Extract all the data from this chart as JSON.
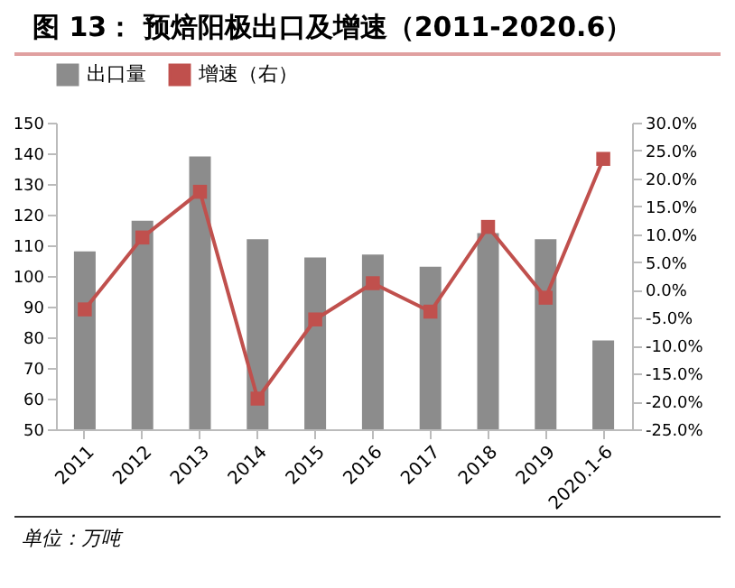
{
  "chart_data": {
    "type": "bar",
    "title": "图 13： 预焙阳极出口及增速（2011-2020.6）",
    "categories": [
      "2011",
      "2012",
      "2013",
      "2014",
      "2015",
      "2016",
      "2017",
      "2018",
      "2019",
      "2020.1-6"
    ],
    "series": [
      {
        "name": "出口量",
        "color": "#8c8c8c",
        "values": [
          108,
          118,
          139,
          112,
          106,
          107,
          103,
          114,
          112,
          79
        ]
      },
      {
        "name": "增速（右）",
        "type": "line",
        "axis": "y2",
        "color": "#c0504d",
        "marker": "square",
        "line_style": "solid",
        "values": [
          -3.5,
          9.4,
          17.6,
          -19.5,
          -5.3,
          1.2,
          -3.9,
          11.3,
          -1.4,
          23.5
        ]
      }
    ],
    "ylim": [
      50,
      150
    ],
    "yticks": [
      50,
      60,
      70,
      80,
      90,
      100,
      110,
      120,
      130,
      140,
      150
    ],
    "y2lim": [
      -25,
      30
    ],
    "y2ticks": [
      {
        "value": -25,
        "label": "-25.0%"
      },
      {
        "value": -20,
        "label": "-20.0%"
      },
      {
        "value": -15,
        "label": "-15.0%"
      },
      {
        "value": -10,
        "label": "-10.0%"
      },
      {
        "value": -5,
        "label": "-5.0%"
      },
      {
        "value": 0,
        "label": "0.0%"
      },
      {
        "value": 5,
        "label": "5.0%"
      },
      {
        "value": 10,
        "label": "10.0%"
      },
      {
        "value": 15,
        "label": "15.0%"
      },
      {
        "value": 20,
        "label": "20.0%"
      },
      {
        "value": 25,
        "label": "25.0%"
      },
      {
        "value": 30,
        "label": "30.0%"
      }
    ],
    "legend": "top",
    "grid": false,
    "annotations": [
      "单位：万吨"
    ]
  }
}
